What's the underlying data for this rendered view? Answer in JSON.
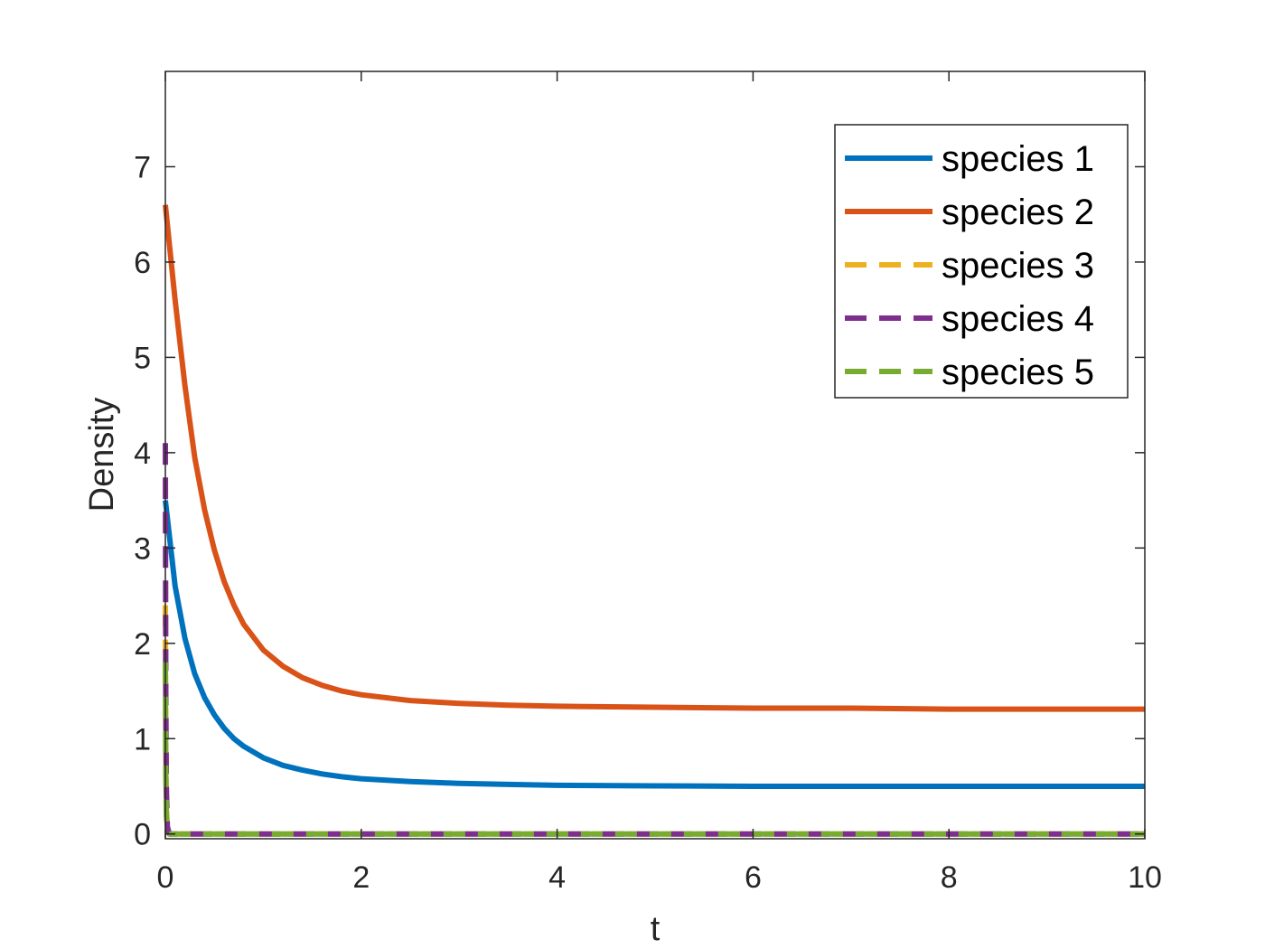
{
  "chart_data": {
    "type": "line",
    "title": "",
    "xlabel": "t",
    "ylabel": "Density",
    "xlim": [
      0,
      10
    ],
    "ylim": [
      -0.05,
      8.0
    ],
    "xticks": [
      0,
      2,
      4,
      6,
      8,
      10
    ],
    "xtick_labels": [
      "0",
      "2",
      "4",
      "6",
      "8",
      "10"
    ],
    "yticks": [
      0,
      1,
      2,
      3,
      4,
      5,
      6,
      7
    ],
    "ytick_labels": [
      "0",
      "1",
      "2",
      "3",
      "4",
      "5",
      "6",
      "7"
    ],
    "grid": false,
    "legend_position": "top-right",
    "series": [
      {
        "name": "species 1",
        "color": "#0072BD",
        "style": "solid",
        "x": [
          0,
          0.1,
          0.2,
          0.3,
          0.4,
          0.5,
          0.6,
          0.7,
          0.8,
          1.0,
          1.2,
          1.4,
          1.6,
          1.8,
          2.0,
          2.5,
          3.0,
          3.5,
          4.0,
          5.0,
          6.0,
          7.0,
          8.0,
          9.0,
          10.0
        ],
        "y": [
          3.5,
          2.6,
          2.05,
          1.68,
          1.43,
          1.25,
          1.11,
          1.0,
          0.92,
          0.8,
          0.72,
          0.67,
          0.63,
          0.6,
          0.58,
          0.55,
          0.53,
          0.52,
          0.51,
          0.505,
          0.5,
          0.5,
          0.5,
          0.5,
          0.5
        ]
      },
      {
        "name": "species 2",
        "color": "#D95319",
        "style": "solid",
        "x": [
          0,
          0.05,
          0.1,
          0.2,
          0.3,
          0.4,
          0.5,
          0.6,
          0.7,
          0.8,
          1.0,
          1.2,
          1.4,
          1.6,
          1.8,
          2.0,
          2.5,
          3.0,
          3.5,
          4.0,
          5.0,
          6.0,
          7.0,
          8.0,
          9.0,
          10.0
        ],
        "y": [
          6.6,
          6.1,
          5.6,
          4.7,
          3.95,
          3.4,
          2.98,
          2.65,
          2.4,
          2.2,
          1.93,
          1.76,
          1.64,
          1.56,
          1.5,
          1.46,
          1.4,
          1.37,
          1.35,
          1.34,
          1.33,
          1.32,
          1.32,
          1.31,
          1.31,
          1.31
        ]
      },
      {
        "name": "species 3",
        "color": "#EDB120",
        "style": "dashed",
        "x": [
          0,
          0.005,
          0.01,
          0.02,
          0.04,
          10.0
        ],
        "y": [
          2.4,
          0.9,
          0.3,
          0.05,
          0,
          0
        ]
      },
      {
        "name": "species 4",
        "color": "#7E2F8E",
        "style": "dashed",
        "x": [
          0,
          0.005,
          0.01,
          0.02,
          0.04,
          10.0
        ],
        "y": [
          4.1,
          1.5,
          0.5,
          0.08,
          0,
          0
        ]
      },
      {
        "name": "species 5",
        "color": "#77AC30",
        "style": "dashed",
        "x": [
          0,
          0.005,
          0.01,
          0.02,
          0.04,
          10.0
        ],
        "y": [
          1.8,
          0.65,
          0.2,
          0.03,
          0,
          0
        ]
      }
    ]
  }
}
